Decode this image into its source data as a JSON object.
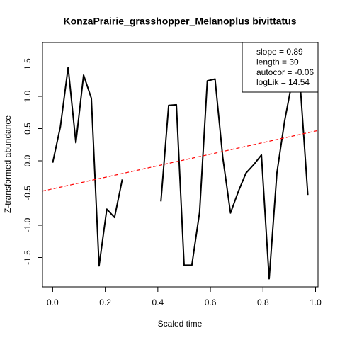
{
  "chart_data": {
    "type": "line",
    "title": "KonzaPrairie_grasshopper_Melanoplus bivittatus",
    "xlabel": "Scaled time",
    "ylabel": "Z-transformed abundance",
    "x": [
      0,
      0.0294,
      0.0588,
      0.0882,
      0.1176,
      0.1471,
      0.1765,
      0.2059,
      0.2353,
      0.2647,
      0.2941,
      0.3235,
      0.3529,
      0.3824,
      0.4118,
      0.4412,
      0.4706,
      0.5,
      0.5294,
      0.5588,
      0.5882,
      0.6176,
      0.6471,
      0.6765,
      0.7059,
      0.7353,
      0.7647,
      0.7941,
      0.8235,
      0.8529,
      0.8824,
      0.9118,
      0.9412,
      0.9706
    ],
    "series": [
      {
        "color": "#000000",
        "values": [
          -0.03,
          0.53,
          1.45,
          0.28,
          1.33,
          0.97,
          -1.63,
          -0.75,
          -0.88,
          -0.29,
          null,
          null,
          null,
          null,
          -0.63,
          0.86,
          0.87,
          -1.62,
          -1.62,
          -0.8,
          1.24,
          1.27,
          0.05,
          -0.81,
          -0.48,
          -0.19,
          -0.06,
          0.09,
          -1.83,
          -0.19,
          0.62,
          1.25,
          1.2,
          -0.53
        ]
      }
    ],
    "trend": {
      "color": "#ff0000",
      "x": [
        -0.0388,
        1.0094
      ],
      "y": [
        -0.47,
        0.47
      ]
    },
    "legend": [
      "slope = 0.89",
      "length = 30",
      "autocor = -0.06",
      "logLik = 14.54"
    ],
    "legend_position": "top-right",
    "xlim": [
      -0.0388,
      1.0094
    ],
    "ylim": [
      -1.956,
      1.835
    ],
    "xticks": [
      {
        "value": 0,
        "label": "0.0"
      },
      0.2,
      0.4,
      0.6,
      0.8,
      {
        "value": 1,
        "label": "1.0"
      }
    ],
    "yticks": [
      -1.5,
      {
        "value": -1,
        "label": "-1.0"
      },
      -0.5,
      {
        "value": 0,
        "label": "0.0"
      },
      0.5,
      {
        "value": 1,
        "label": "1.0"
      },
      1.5
    ]
  }
}
